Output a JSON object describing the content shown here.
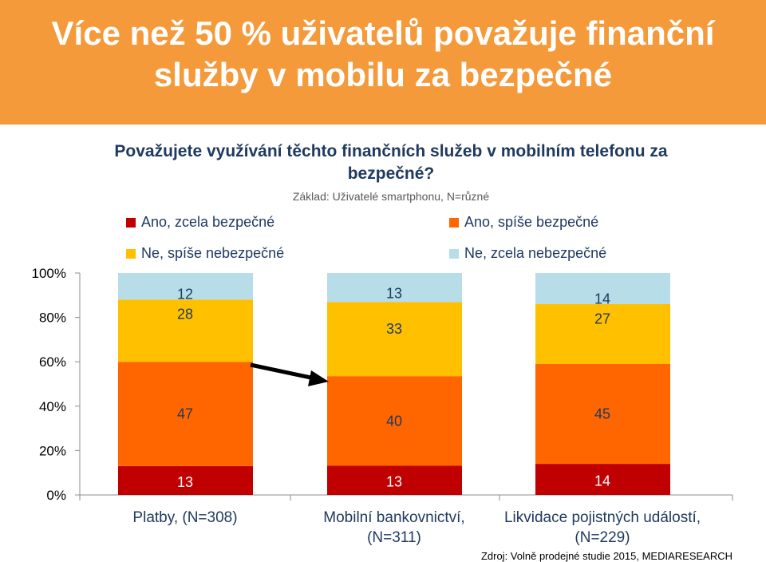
{
  "header": {
    "title": "Více než 50 % uživatelů považuje finanční služby v mobilu za bezpečné"
  },
  "chart_data": {
    "type": "bar",
    "stacked": true,
    "title": "Považujete využívání těchto finančních služeb v mobilním telefonu za bezpečné?",
    "subtitle": "Základ: Uživatelé smartphonu, N=různé",
    "categories": [
      "Platby, (N=308)",
      "Mobilní bankovnictví, (N=311)",
      "Likvidace pojistných událostí, (N=229)"
    ],
    "series": [
      {
        "name": "Ano, zcela bezpečné",
        "values": [
          13,
          13,
          14
        ],
        "color": "#c00000"
      },
      {
        "name": "Ano, spíše bezpečné",
        "values": [
          47,
          40,
          45
        ],
        "color": "#ff6600"
      },
      {
        "name": "Ne, spíše nebezpečné",
        "values": [
          28,
          33,
          27
        ],
        "color": "#ffc000"
      },
      {
        "name": "Ne, zcela nebezpečné",
        "values": [
          12,
          13,
          14
        ],
        "color": "#b7dde8"
      }
    ],
    "yticks": [
      "0%",
      "20%",
      "40%",
      "60%",
      "80%",
      "100%"
    ],
    "ylim": [
      0,
      100
    ],
    "grid": false,
    "legend": "top",
    "annotation": "arrow-pointing-from-bar-1-to-bar-2",
    "source": "Zdroj: Volně prodejné studie 2015, MEDIARESEARCH"
  }
}
